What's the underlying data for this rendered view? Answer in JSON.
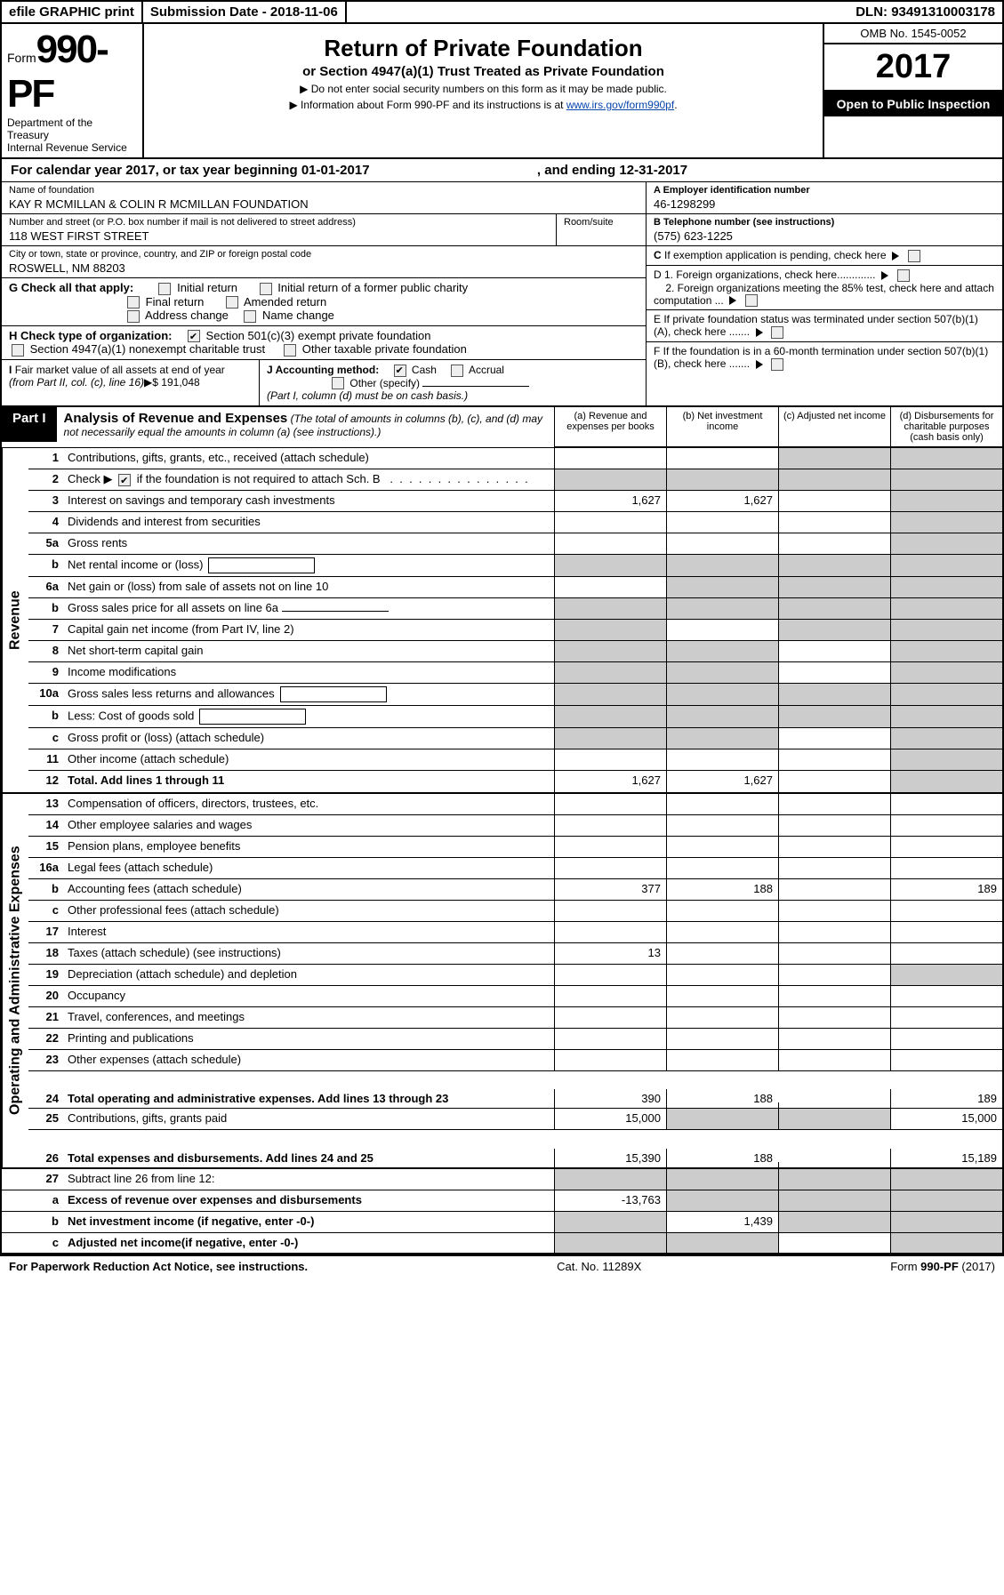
{
  "header_bar": {
    "efile": "efile GRAPHIC print",
    "submission": "Submission Date - 2018-11-06",
    "dln": "DLN: 93491310003178"
  },
  "form": {
    "prefix": "Form",
    "number": "990-PF",
    "dept": "Department of the Treasury",
    "irs": "Internal Revenue Service",
    "title": "Return of Private Foundation",
    "subtitle": "or Section 4947(a)(1) Trust Treated as Private Foundation",
    "note1": "▶ Do not enter social security numbers on this form as it may be made public.",
    "note2_pre": "▶ Information about Form 990-PF and its instructions is at ",
    "note2_link": "www.irs.gov/form990pf",
    "omb": "OMB No. 1545-0052",
    "year": "2017",
    "open": "Open to Public Inspection"
  },
  "cal": {
    "text_pre": "For calendar year 2017, or tax year beginning ",
    "begin": "01-01-2017",
    "mid": ", and ending ",
    "end": "12-31-2017"
  },
  "id": {
    "name_lbl": "Name of foundation",
    "name": "KAY R MCMILLAN & COLIN R MCMILLAN FOUNDATION",
    "addr_lbl": "Number and street (or P.O. box number if mail is not delivered to street address)",
    "room_lbl": "Room/suite",
    "addr": "118 WEST FIRST STREET",
    "city_lbl": "City or town, state or province, country, and ZIP or foreign postal code",
    "city": "ROSWELL, NM  88203",
    "ein_lbl": "A Employer identification number",
    "ein": "46-1298299",
    "tel_lbl": "B Telephone number (see instructions)",
    "tel": "(575) 623-1225",
    "c_lbl": "C If exemption application is pending, check here",
    "d1": "D 1. Foreign organizations, check here.............",
    "d2": "2. Foreign organizations meeting the 85% test, check here and attach computation ...",
    "e_lbl": "E  If private foundation status was terminated under section 507(b)(1)(A), check here .......",
    "f_lbl": "F  If the foundation is in a 60-month termination under section 507(b)(1)(B), check here .......",
    "g_lbl": "G Check all that apply:",
    "g_opts": [
      "Initial return",
      "Initial return of a former public charity",
      "Final return",
      "Amended return",
      "Address change",
      "Name change"
    ],
    "h_lbl": "H Check type of organization:",
    "h1": "Section 501(c)(3) exempt private foundation",
    "h2": "Section 4947(a)(1) nonexempt charitable trust",
    "h3": "Other taxable private foundation",
    "i_lbl": "I Fair market value of all assets at end of year (from Part II, col. (c), line 16)▶$  ",
    "i_val": "191,048",
    "j_lbl": "J Accounting method:",
    "j1": "Cash",
    "j2": "Accrual",
    "j_other": "Other (specify)",
    "j_note": "(Part I, column (d) must be on cash basis.)"
  },
  "part1": {
    "pill": "Part I",
    "title": "Analysis of Revenue and Expenses",
    "note": "(The total of amounts in columns (b), (c), and (d) may not necessarily equal the amounts in column (a) (see instructions).)",
    "cols": {
      "a": "(a)   Revenue and expenses per books",
      "b": "(b)   Net investment income",
      "c": "(c)   Adjusted net income",
      "d": "(d)   Disbursements for charitable purposes (cash basis only)"
    }
  },
  "sides": {
    "rev": "Revenue",
    "exp": "Operating and Administrative Expenses"
  },
  "rows": {
    "1": {
      "n": "1",
      "d": "Contributions, gifts, grants, etc., received (attach schedule)",
      "sh": [
        "",
        "",
        "c",
        "d"
      ]
    },
    "2": {
      "n": "2",
      "d_pre": "Check ▶ ",
      "d_post": " if the foundation is not required to attach Sch. B",
      "sh": [
        "a",
        "b",
        "c",
        "d"
      ],
      "chk": true
    },
    "3": {
      "n": "3",
      "d": "Interest on savings and temporary cash investments",
      "a": "1,627",
      "b": "1,627",
      "sh": [
        "",
        "",
        "",
        "d"
      ]
    },
    "4": {
      "n": "4",
      "d": "Dividends and interest from securities",
      "sh": [
        "",
        "",
        "",
        "d"
      ]
    },
    "5a": {
      "n": "5a",
      "d": "Gross rents",
      "sh": [
        "",
        "",
        "",
        "d"
      ]
    },
    "5b": {
      "n": "b",
      "d": "Net rental income or (loss)",
      "sh": [
        "a",
        "b",
        "c",
        "d"
      ],
      "box": true
    },
    "6a": {
      "n": "6a",
      "d": "Net gain or (loss) from sale of assets not on line 10",
      "sh": [
        "",
        "b",
        "c",
        "d"
      ]
    },
    "6b": {
      "n": "b",
      "d": "Gross sales price for all assets on line 6a",
      "sh": [
        "a",
        "b",
        "c",
        "d"
      ],
      "line": true
    },
    "7": {
      "n": "7",
      "d": "Capital gain net income (from Part IV, line 2)",
      "sh": [
        "a",
        "",
        "c",
        "d"
      ]
    },
    "8": {
      "n": "8",
      "d": "Net short-term capital gain",
      "sh": [
        "a",
        "b",
        "",
        "d"
      ]
    },
    "9": {
      "n": "9",
      "d": "Income modifications",
      "sh": [
        "a",
        "b",
        "",
        "d"
      ]
    },
    "10a": {
      "n": "10a",
      "d": "Gross sales less returns and allowances",
      "sh": [
        "a",
        "b",
        "c",
        "d"
      ],
      "box": true
    },
    "10b": {
      "n": "b",
      "d": "Less: Cost of goods sold",
      "sh": [
        "a",
        "b",
        "c",
        "d"
      ],
      "box": true
    },
    "10c": {
      "n": "c",
      "d": "Gross profit or (loss) (attach schedule)",
      "sh": [
        "a",
        "b",
        "",
        "d"
      ]
    },
    "11": {
      "n": "11",
      "d": "Other income (attach schedule)",
      "sh": [
        "",
        "",
        "",
        "d"
      ]
    },
    "12": {
      "n": "12",
      "d": "Total. Add lines 1 through 11",
      "a": "1,627",
      "b": "1,627",
      "sh": [
        "",
        "",
        "",
        "d"
      ],
      "bold": true
    },
    "13": {
      "n": "13",
      "d": "Compensation of officers, directors, trustees, etc.",
      "sh": [
        "",
        "",
        "",
        ""
      ]
    },
    "14": {
      "n": "14",
      "d": "Other employee salaries and wages",
      "sh": [
        "",
        "",
        "",
        ""
      ]
    },
    "15": {
      "n": "15",
      "d": "Pension plans, employee benefits",
      "sh": [
        "",
        "",
        "",
        ""
      ]
    },
    "16a": {
      "n": "16a",
      "d": "Legal fees (attach schedule)",
      "sh": [
        "",
        "",
        "",
        ""
      ]
    },
    "16b": {
      "n": "b",
      "d": "Accounting fees (attach schedule)",
      "a": "377",
      "b": "188",
      "dv": "189",
      "sh": [
        "",
        "",
        "",
        ""
      ]
    },
    "16c": {
      "n": "c",
      "d": "Other professional fees (attach schedule)",
      "sh": [
        "",
        "",
        "",
        ""
      ]
    },
    "17": {
      "n": "17",
      "d": "Interest",
      "sh": [
        "",
        "",
        "",
        ""
      ]
    },
    "18": {
      "n": "18",
      "d": "Taxes (attach schedule) (see instructions)",
      "a": "13",
      "sh": [
        "",
        "",
        "",
        ""
      ]
    },
    "19": {
      "n": "19",
      "d": "Depreciation (attach schedule) and depletion",
      "sh": [
        "",
        "",
        "",
        "d"
      ]
    },
    "20": {
      "n": "20",
      "d": "Occupancy",
      "sh": [
        "",
        "",
        "",
        ""
      ]
    },
    "21": {
      "n": "21",
      "d": "Travel, conferences, and meetings",
      "sh": [
        "",
        "",
        "",
        ""
      ]
    },
    "22": {
      "n": "22",
      "d": "Printing and publications",
      "sh": [
        "",
        "",
        "",
        ""
      ]
    },
    "23": {
      "n": "23",
      "d": "Other expenses (attach schedule)",
      "sh": [
        "",
        "",
        "",
        ""
      ]
    },
    "24": {
      "n": "24",
      "d": "Total operating and administrative expenses. Add lines 13 through 23",
      "a": "390",
      "b": "188",
      "dv": "189",
      "sh": [
        "",
        "",
        "",
        ""
      ],
      "bold": true,
      "tall": true
    },
    "25": {
      "n": "25",
      "d": "Contributions, gifts, grants paid",
      "a": "15,000",
      "dv": "15,000",
      "sh": [
        "",
        "b",
        "c",
        ""
      ]
    },
    "26": {
      "n": "26",
      "d": "Total expenses and disbursements. Add lines 24 and 25",
      "a": "15,390",
      "b": "188",
      "dv": "15,189",
      "sh": [
        "",
        "",
        "",
        ""
      ],
      "bold": true,
      "tall": true
    },
    "27": {
      "n": "27",
      "d": "Subtract line 26 from line 12:",
      "sh": [
        "a",
        "b",
        "c",
        "d"
      ]
    },
    "27a": {
      "n": "a",
      "d": "Excess of revenue over expenses and disbursements",
      "a": "-13,763",
      "sh": [
        "",
        "b",
        "c",
        "d"
      ],
      "bold": true
    },
    "27b": {
      "n": "b",
      "d": "Net investment income (if negative, enter -0-)",
      "b": "1,439",
      "sh": [
        "a",
        "",
        "c",
        "d"
      ],
      "bold": true
    },
    "27c": {
      "n": "c",
      "d": "Adjusted net income(if negative, enter -0-)",
      "sh": [
        "a",
        "b",
        "",
        "d"
      ],
      "bold": true
    }
  },
  "footer": {
    "left": "For Paperwork Reduction Act Notice, see instructions.",
    "mid": "Cat. No. 11289X",
    "right": "Form 990-PF (2017)"
  }
}
